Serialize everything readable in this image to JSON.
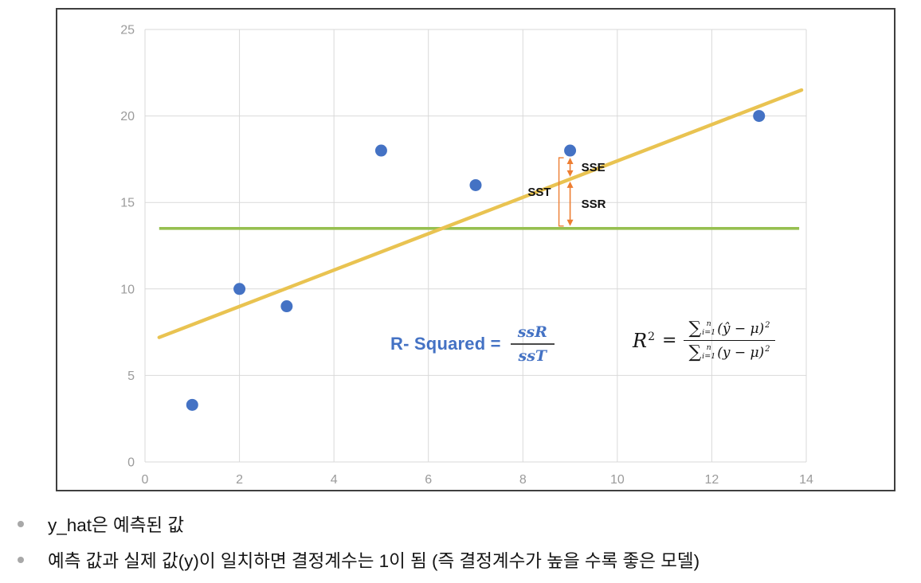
{
  "chart_data": {
    "type": "scatter",
    "xlim": [
      0,
      14
    ],
    "ylim": [
      0,
      25
    ],
    "xticks": [
      0,
      2,
      4,
      6,
      8,
      10,
      12,
      14
    ],
    "yticks": [
      0,
      5,
      10,
      15,
      20,
      25
    ],
    "grid": true,
    "points": [
      [
        1,
        3.3
      ],
      [
        2,
        10
      ],
      [
        3,
        9
      ],
      [
        5,
        18
      ],
      [
        7,
        16
      ],
      [
        9,
        18
      ],
      [
        13,
        20
      ]
    ],
    "regression_line": {
      "x1": 0.3,
      "y1": 7.2,
      "x2": 13.9,
      "y2": 21.5
    },
    "mean_line": {
      "y": 13.5,
      "x1": 0.3,
      "x2": 13.85
    },
    "annotations": {
      "x": 9,
      "sse_label": "SSE",
      "sst_label": "SST",
      "ssr_label": "SSR"
    },
    "colors": {
      "point": "#4472C4",
      "regression": "#E9C351",
      "mean": "#97C050",
      "grid": "#D9D9D9",
      "tick": "#9B9B9B",
      "annotation": "#ED7D31",
      "formula_blue": "#4472C4"
    }
  },
  "formulas": {
    "r_squared": {
      "prefix": "R- Squared =",
      "numerator": "ssR",
      "denominator": "ssT"
    },
    "r2": {
      "lhs": "R",
      "lhs_exp": "2",
      "equals": "=",
      "sigma": "∑",
      "sigma_sup": "n",
      "sigma_sub": "i=1",
      "num_body": "(ŷ − μ)",
      "num_exp": "2",
      "den_body": "(y − μ)",
      "den_exp": "2"
    }
  },
  "bullets": [
    {
      "text": "y_hat은 예측된 값"
    },
    {
      "text": "예측 값과 실제 값(y)이 일치하면 결정계수는 1이 됨 (즉 결정계수가 높을 수록 좋은 모델)"
    }
  ]
}
